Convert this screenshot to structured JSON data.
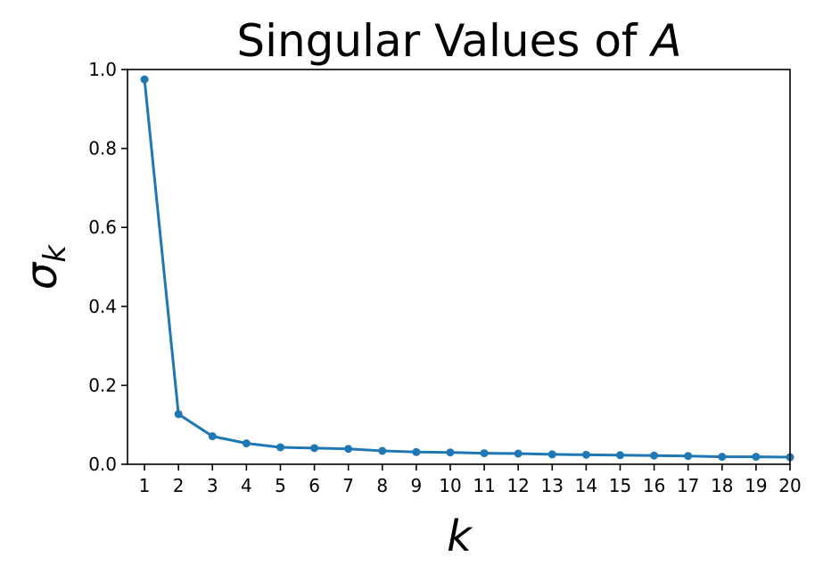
{
  "chart_data": {
    "type": "line",
    "title": "Singular Values of ",
    "title_italic": "A",
    "xlabel": "k",
    "ylabel": "σ",
    "ylabel_sub": "k",
    "x": [
      1,
      2,
      3,
      4,
      5,
      6,
      7,
      8,
      9,
      10,
      11,
      12,
      13,
      14,
      15,
      16,
      17,
      18,
      19,
      20
    ],
    "values": [
      0.975,
      0.127,
      0.071,
      0.053,
      0.043,
      0.041,
      0.039,
      0.034,
      0.031,
      0.03,
      0.028,
      0.027,
      0.025,
      0.024,
      0.023,
      0.022,
      0.021,
      0.019,
      0.019,
      0.018
    ],
    "xlim": [
      0.5,
      20
    ],
    "ylim": [
      0,
      1.0
    ],
    "yticks": [
      "0.0",
      "0.2",
      "0.4",
      "0.6",
      "0.8",
      "1.0"
    ],
    "xticks": [
      "1",
      "2",
      "3",
      "4",
      "5",
      "6",
      "7",
      "8",
      "9",
      "10",
      "11",
      "12",
      "13",
      "14",
      "15",
      "16",
      "17",
      "18",
      "19",
      "20"
    ],
    "color": "#1f77b4",
    "grid": false,
    "marker": "circle"
  }
}
